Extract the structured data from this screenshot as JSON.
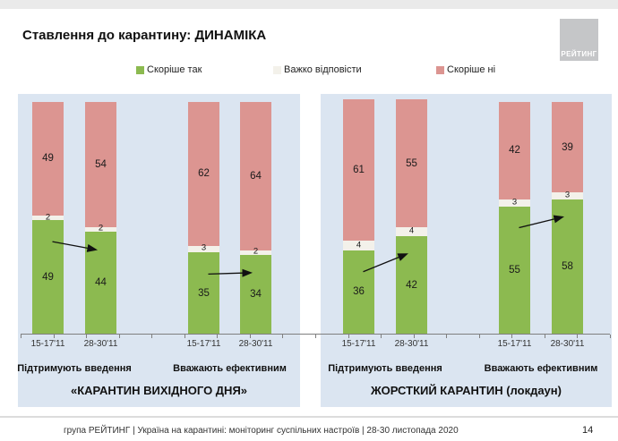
{
  "slide": {
    "title": "Ставлення до карантину: ДИНАМІКА",
    "page_number": "14"
  },
  "logo": {
    "text": "РЕЙТИНГ"
  },
  "legend": {
    "items": [
      {
        "label": "Скоріше так",
        "color": "#8cba50"
      },
      {
        "label": "Важко відповісти",
        "color": "#f3f1ea"
      },
      {
        "label": "Скоріше ні",
        "color": "#dc9591"
      }
    ]
  },
  "footer": {
    "text": "група РЕЙТИНГ | Україна на карантині: моніторинг суспільних настроїв | 28-30 листопада 2020"
  },
  "chart_data": {
    "type": "bar",
    "stacked": true,
    "unit": "percent",
    "ylim": [
      0,
      100
    ],
    "grid": false,
    "legend_position": "top",
    "series_names": [
      "Скоріше так",
      "Важко відповісти",
      "Скоріше ні"
    ],
    "colors": {
      "yes": "#8cba50",
      "hard": "#f3f1ea",
      "no": "#dc9591"
    },
    "panels": [
      {
        "title": "«КАРАНТИН ВИХІДНОГО ДНЯ»",
        "groups": [
          {
            "label": "Підтримують введення",
            "trend": "down",
            "bars": [
              {
                "date": "15-17'11",
                "yes": 49,
                "hard": 2,
                "no": 49
              },
              {
                "date": "28-30'11",
                "yes": 44,
                "hard": 2,
                "no": 54
              }
            ]
          },
          {
            "label": "Вважають ефективним",
            "trend": "down",
            "bars": [
              {
                "date": "15-17'11",
                "yes": 35,
                "hard": 3,
                "no": 62
              },
              {
                "date": "28-30'11",
                "yes": 34,
                "hard": 2,
                "no": 64
              }
            ]
          }
        ]
      },
      {
        "title": "ЖОРСТКИЙ КАРАНТИН (локдаун)",
        "groups": [
          {
            "label": "Підтримують введення",
            "trend": "up",
            "bars": [
              {
                "date": "15-17'11",
                "yes": 36,
                "hard": 4,
                "no": 61
              },
              {
                "date": "28-30'11",
                "yes": 42,
                "hard": 4,
                "no": 55
              }
            ]
          },
          {
            "label": "Вважають ефективним",
            "trend": "up",
            "bars": [
              {
                "date": "15-17'11",
                "yes": 55,
                "hard": 3,
                "no": 42
              },
              {
                "date": "28-30'11",
                "yes": 58,
                "hard": 3,
                "no": 39
              }
            ]
          }
        ]
      }
    ]
  }
}
